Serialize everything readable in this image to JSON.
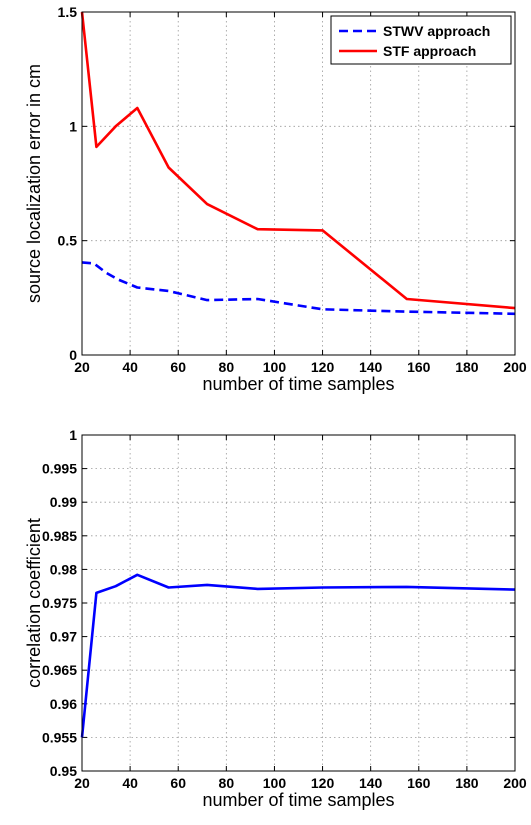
{
  "chart_data": [
    {
      "type": "line",
      "xlabel": "number of time samples",
      "ylabel": "source localization error in cm",
      "xlim": [
        20,
        200
      ],
      "ylim": [
        0,
        1.5
      ],
      "xticks": [
        "20",
        "40",
        "60",
        "80",
        "100",
        "120",
        "140",
        "160",
        "180",
        "200"
      ],
      "yticks": [
        "0",
        "0.5",
        "1",
        "1.5"
      ],
      "grid": true,
      "legend_position": "top-right",
      "series": [
        {
          "name": "STWV approach",
          "color": "#0000ff",
          "style": "dashed",
          "x": [
            20,
            25,
            30,
            35,
            43,
            56,
            72,
            93,
            120,
            155,
            200
          ],
          "y": [
            0.405,
            0.4,
            0.36,
            0.33,
            0.295,
            0.28,
            0.24,
            0.245,
            0.2,
            0.19,
            0.18
          ]
        },
        {
          "name": "STF approach",
          "color": "#ff0000",
          "style": "solid",
          "x": [
            20,
            26,
            34,
            43,
            56,
            72,
            93,
            120,
            155,
            200
          ],
          "y": [
            1.5,
            0.91,
            1.0,
            1.08,
            0.82,
            0.66,
            0.55,
            0.545,
            0.245,
            0.205
          ]
        }
      ]
    },
    {
      "type": "line",
      "xlabel": "number of time samples",
      "ylabel": "correlation coefficient",
      "xlim": [
        20,
        200
      ],
      "ylim": [
        0.95,
        1
      ],
      "xticks": [
        "20",
        "40",
        "60",
        "80",
        "100",
        "120",
        "140",
        "160",
        "180",
        "200"
      ],
      "yticks": [
        "0.95",
        "0.955",
        "0.96",
        "0.965",
        "0.97",
        "0.975",
        "0.98",
        "0.985",
        "0.99",
        "0.995",
        "1"
      ],
      "grid": true,
      "series": [
        {
          "color": "#0000ff",
          "style": "solid",
          "x": [
            20,
            26,
            34,
            43,
            56,
            72,
            93,
            120,
            155,
            200
          ],
          "y": [
            0.955,
            0.9765,
            0.9775,
            0.9792,
            0.9773,
            0.9777,
            0.9771,
            0.9773,
            0.9774,
            0.977
          ]
        }
      ]
    }
  ]
}
